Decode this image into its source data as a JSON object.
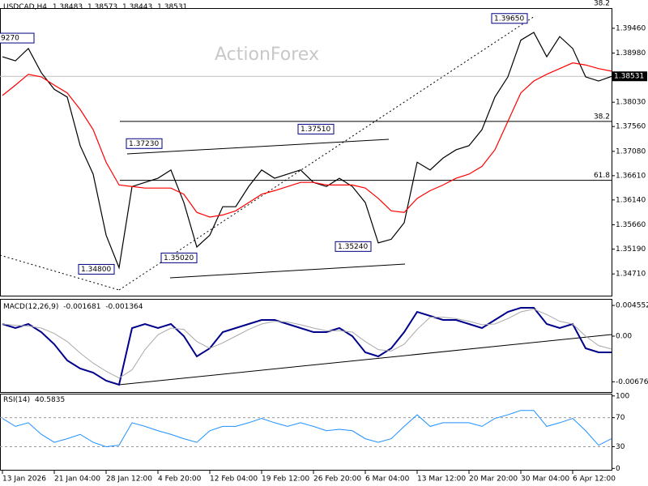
{
  "chart_data": [
    {
      "type": "line",
      "title": "USDCAD,H4",
      "ohlc": [
        1.38483,
        1.38573,
        1.38443,
        1.38531
      ],
      "watermark": "ActionForex",
      "categories": [
        "13 Jan 2026",
        null,
        null,
        null,
        "21 Jan 04:00",
        null,
        null,
        null,
        "28 Jan 12:00",
        null,
        null,
        null,
        "4 Feb 20:00",
        null,
        null,
        null,
        "12 Feb 04:00",
        null,
        null,
        null,
        "19 Feb 12:00",
        null,
        null,
        null,
        "26 Feb 20:00",
        null,
        null,
        null,
        "6 Mar 04:00",
        null,
        null,
        null,
        "13 Mar 12:00",
        null,
        null,
        null,
        "20 Mar 20:00",
        null,
        null,
        null,
        "30 Mar 04:00",
        null,
        null,
        null,
        "6 Apr 12:00",
        null,
        null,
        null
      ],
      "series": [
        {
          "color": "#000000",
          "values": [
            1.3891,
            1.3883,
            1.3907,
            1.386,
            1.3828,
            1.3813,
            1.3719,
            1.3664,
            1.3546,
            1.3483,
            1.364,
            1.3648,
            1.3656,
            1.3672,
            1.3609,
            1.3523,
            1.3546,
            1.3601,
            1.3601,
            1.364,
            1.3672,
            1.3656,
            1.3664,
            1.3672,
            1.3648,
            1.364,
            1.3656,
            1.364,
            1.3609,
            1.3531,
            1.3538,
            1.357,
            1.3687,
            1.3672,
            1.3695,
            1.3711,
            1.3719,
            1.375,
            1.3813,
            1.3852,
            1.3923,
            1.3938,
            1.3891,
            1.393,
            1.3907,
            1.3852,
            1.3844,
            1.3853
          ]
        },
        {
          "color": "#ff0000",
          "values": [
            1.3816,
            1.3836,
            1.3857,
            1.3852,
            1.3836,
            1.3821,
            1.3789,
            1.375,
            1.3687,
            1.3643,
            1.364,
            1.3637,
            1.3637,
            1.3637,
            1.3625,
            1.359,
            1.3581,
            1.3585,
            1.3593,
            1.3609,
            1.3625,
            1.3632,
            1.364,
            1.3648,
            1.3648,
            1.3643,
            1.3643,
            1.3643,
            1.3637,
            1.3617,
            1.3593,
            1.359,
            1.3617,
            1.3632,
            1.3643,
            1.3656,
            1.3664,
            1.3679,
            1.3711,
            1.3766,
            1.3821,
            1.3844,
            1.3857,
            1.3868,
            1.3879,
            1.3875,
            1.3868,
            1.3863
          ]
        }
      ],
      "ylim": [
        1.3429,
        1.3985
      ],
      "yticks": [
        {
          "value": 1.3471,
          "label": "1.34710"
        },
        {
          "value": 1.3519,
          "label": "1.35190"
        },
        {
          "value": 1.3566,
          "label": "1.35660"
        },
        {
          "value": 1.3614,
          "label": "1.36140"
        },
        {
          "value": 1.3661,
          "label": "1.36610"
        },
        {
          "value": 1.3708,
          "label": "1.37080"
        },
        {
          "value": 1.3756,
          "label": "1.37560"
        },
        {
          "value": 1.3803,
          "label": "1.38030"
        },
        {
          "value": 1.3898,
          "label": "1.38980"
        },
        {
          "value": 1.3946,
          "label": "1.39460"
        }
      ],
      "current_price": {
        "value": 1.38531,
        "label": "1.38531"
      },
      "price_labels": [
        {
          "value": 1.3965,
          "label": "1.39650"
        },
        {
          "value": 1.3751,
          "label": "1.37510"
        },
        {
          "value": 1.3723,
          "label": "1.37230"
        },
        {
          "value": 1.3524,
          "label": "1.35240"
        },
        {
          "value": 1.3502,
          "label": "1.35020"
        },
        {
          "value": 1.348,
          "label": "1.34800"
        },
        {
          "value": 1.3927,
          "label": "9270"
        }
      ],
      "levels": [
        {
          "value": 1.3766,
          "label": "38.2"
        },
        {
          "value": 1.3652,
          "label": "61.8"
        },
        {
          "value": 1.3996,
          "label": "38.2"
        }
      ]
    },
    {
      "type": "line",
      "title": "MACD(12,26,9)",
      "readings": [
        -0.001681,
        -0.001364
      ],
      "series": [
        {
          "color": "#00008b",
          "values": [
            0.0018,
            0.0012,
            0.0018,
            0.0006,
            -0.0012,
            -0.0036,
            -0.0048,
            -0.0054,
            -0.0066,
            -0.0072,
            0.0012,
            0.0018,
            0.0012,
            0.0018,
            0,
            -0.003,
            -0.0018,
            0.0006,
            0.0012,
            0.0018,
            0.0024,
            0.0024,
            0.0018,
            0.0012,
            0.0006,
            0.0006,
            0.0012,
            0,
            -0.0024,
            -0.003,
            -0.0018,
            0.0006,
            0.0036,
            0.003,
            0.0024,
            0.0024,
            0.0018,
            0.0012,
            0.0024,
            0.0036,
            0.0042,
            0.0042,
            0.0018,
            0.0012,
            0.0018,
            -0.0018,
            -0.0024,
            -0.0024
          ]
        },
        {
          "color": "#a9a9a9",
          "values": [
            0.0018,
            0.0016,
            0.0015,
            0.0012,
            0.0004,
            -0.0008,
            -0.0025,
            -0.004,
            -0.0052,
            -0.0062,
            -0.005,
            -0.002,
            0.0002,
            0.0012,
            0.001,
            -0.0008,
            -0.0018,
            -0.001,
            0,
            0.001,
            0.0018,
            0.0022,
            0.0021,
            0.0017,
            0.0012,
            0.0008,
            0.0008,
            0.0006,
            -0.0008,
            -0.002,
            -0.0022,
            -0.0012,
            0.001,
            0.0028,
            0.0028,
            0.0026,
            0.0022,
            0.0017,
            0.0018,
            0.0026,
            0.0036,
            0.004,
            0.0032,
            0.0022,
            0.0018,
            0,
            -0.0014,
            -0.0019
          ]
        }
      ],
      "ylim": [
        -0.0084,
        0.0054
      ],
      "yticks": [
        -0.006764,
        {
          "value": 0,
          "label": "0.00"
        },
        0.004552
      ]
    },
    {
      "type": "line",
      "title": "RSI(14)",
      "readings": [
        40.5835
      ],
      "series": [
        {
          "color": "#1e90ff",
          "values": [
            69,
            58,
            63,
            47,
            36,
            41,
            47,
            36,
            30,
            32,
            63,
            58,
            52,
            47,
            41,
            36,
            52,
            58,
            58,
            63,
            69,
            63,
            58,
            63,
            58,
            52,
            54,
            52,
            41,
            36,
            41,
            58,
            74,
            58,
            63,
            63,
            63,
            58,
            69,
            74,
            80,
            80,
            58,
            63,
            69,
            52,
            32,
            41
          ]
        }
      ],
      "ylim": [
        -3,
        102
      ],
      "yticks": [
        0,
        30,
        70,
        100
      ],
      "dashed_levels": [
        30,
        70
      ]
    }
  ]
}
